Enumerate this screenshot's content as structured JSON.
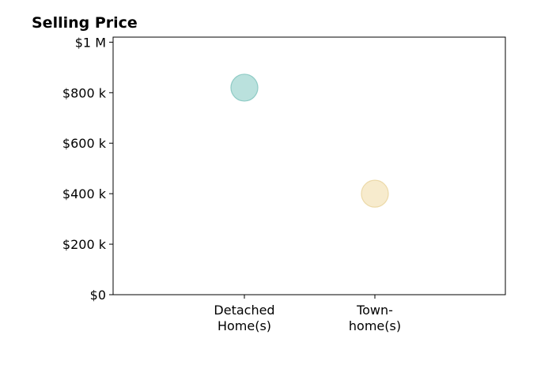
{
  "chart_data": {
    "type": "scatter",
    "title": "Selling Price",
    "xlabel": "",
    "ylabel": "",
    "categories": [
      "Detached\nHome(s)",
      "Town-\nhome(s)"
    ],
    "series": [
      {
        "category": "Detached\nHome(s)",
        "y": 820000
      },
      {
        "category": "Town-\nhome(s)",
        "y": 400000
      }
    ],
    "y_ticks": [
      {
        "value": 0,
        "label": "$0"
      },
      {
        "value": 200000,
        "label": "$200 k"
      },
      {
        "value": 400000,
        "label": "$400 k"
      },
      {
        "value": 600000,
        "label": "$600 k"
      },
      {
        "value": 800000,
        "label": "$800 k"
      },
      {
        "value": 1000000,
        "label": "$1 M"
      }
    ],
    "ylim": [
      0,
      1020000
    ],
    "grid": false,
    "legend": "none",
    "colors": [
      "#a9d9d4",
      "#f5e6c0"
    ],
    "edge_colors": [
      "#8fcbc5",
      "#ecd9a8"
    ]
  }
}
